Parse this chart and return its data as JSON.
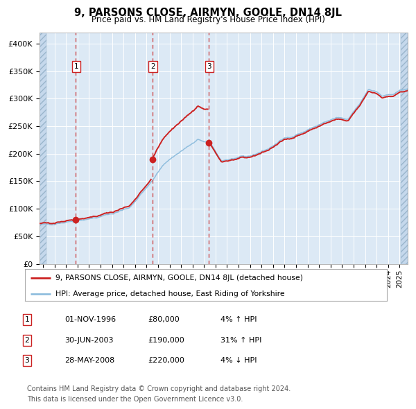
{
  "title": "9, PARSONS CLOSE, AIRMYN, GOOLE, DN14 8JL",
  "subtitle": "Price paid vs. HM Land Registry's House Price Index (HPI)",
  "legend_line1": "9, PARSONS CLOSE, AIRMYN, GOOLE, DN14 8JL (detached house)",
  "legend_line2": "HPI: Average price, detached house, East Riding of Yorkshire",
  "footnote_line1": "Contains HM Land Registry data © Crown copyright and database right 2024.",
  "footnote_line2": "This data is licensed under the Open Government Licence v3.0.",
  "table_rows": [
    {
      "num": "1",
      "date": "01-NOV-1996",
      "price": "£80,000",
      "hpi": "4% ↑ HPI"
    },
    {
      "num": "2",
      "date": "30-JUN-2003",
      "price": "£190,000",
      "hpi": "31% ↑ HPI"
    },
    {
      "num": "3",
      "date": "28-MAY-2008",
      "price": "£220,000",
      "hpi": "4% ↓ HPI"
    }
  ],
  "sale_dates_decimal": [
    1996.836,
    2003.496,
    2008.41
  ],
  "sale_prices": [
    80000,
    190000,
    220000
  ],
  "background_color": "#dce9f5",
  "plot_bg_color": "#dce9f5",
  "hpi_line_color": "#90bede",
  "price_line_color": "#cc2222",
  "dashed_line_color": "#cc3333",
  "sale_dot_color": "#cc2222",
  "ylim": [
    0,
    420000
  ],
  "yticks": [
    0,
    50000,
    100000,
    150000,
    200000,
    250000,
    300000,
    350000,
    400000
  ],
  "ytick_labels": [
    "£0",
    "£50K",
    "£100K",
    "£150K",
    "£200K",
    "£250K",
    "£300K",
    "£350K",
    "£400K"
  ],
  "xlim_start": 1993.7,
  "xlim_end": 2025.7,
  "hpi_keypoints_t": [
    1993.7,
    1994.5,
    1996.0,
    1997.0,
    1998.5,
    2000.0,
    2001.5,
    2003.5,
    2004.5,
    2006.0,
    2007.5,
    2008.5,
    2009.5,
    2011.0,
    2012.0,
    2013.5,
    2015.0,
    2016.5,
    2018.0,
    2019.5,
    2020.5,
    2021.5,
    2022.3,
    2022.8,
    2023.5,
    2024.5,
    2025.7
  ],
  "hpi_keypoints_v": [
    70000,
    72000,
    76000,
    79000,
    83000,
    91000,
    102000,
    150000,
    182000,
    205000,
    225000,
    220000,
    188000,
    192000,
    196000,
    208000,
    228000,
    238000,
    253000,
    265000,
    262000,
    290000,
    318000,
    315000,
    305000,
    308000,
    320000
  ],
  "noise_seed": 42,
  "noise_amplitude": 2500,
  "noise_smooth": 7
}
